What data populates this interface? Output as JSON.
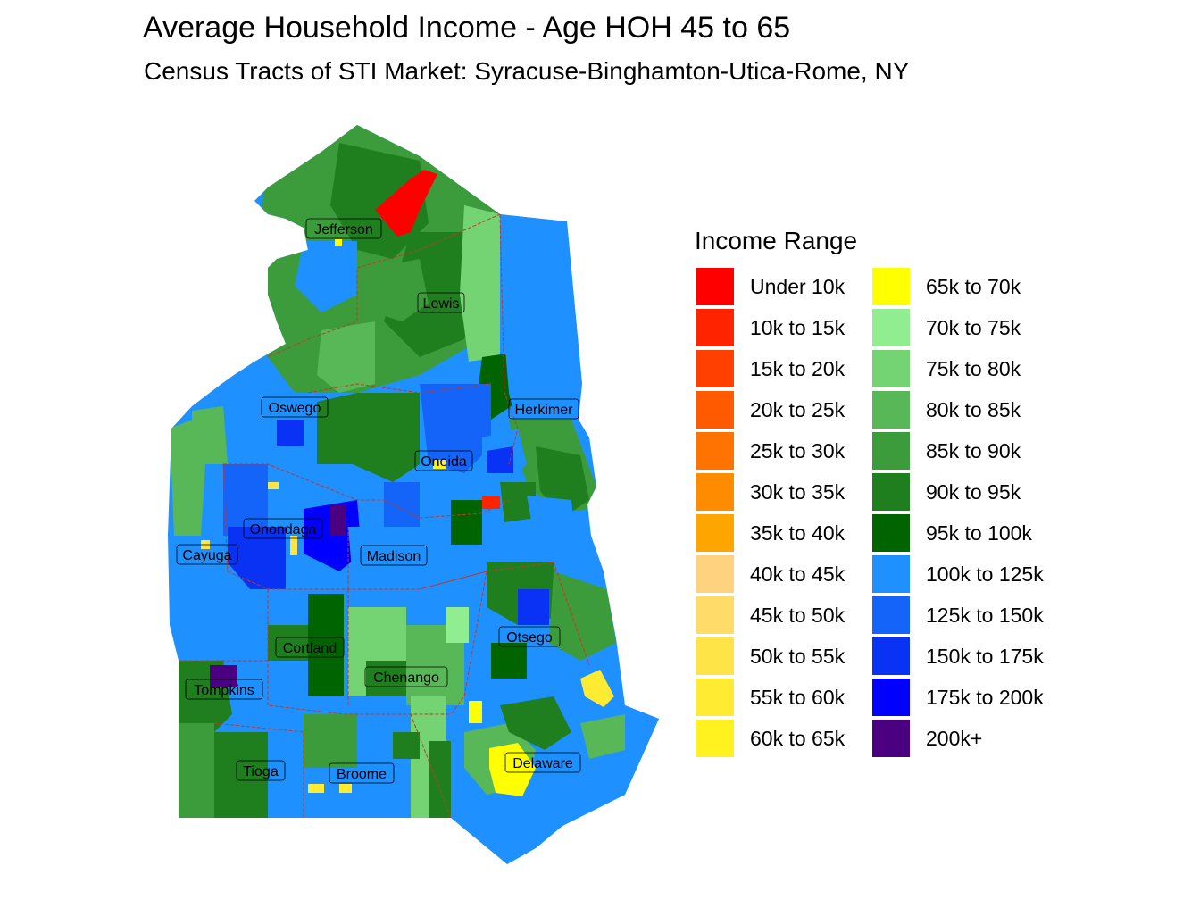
{
  "title": "Average Household Income - Age HOH 45 to 65",
  "subtitle": "Census Tracts of STI Market: Syracuse-Binghamton-Utica-Rome, NY",
  "legend": {
    "title": "Income Range",
    "items": [
      {
        "label": "Under 10k",
        "color": "#ff0000"
      },
      {
        "label": "10k to 15k",
        "color": "#ff2300"
      },
      {
        "label": "15k to 20k",
        "color": "#ff4000"
      },
      {
        "label": "20k to 25k",
        "color": "#ff5a00"
      },
      {
        "label": "25k to 30k",
        "color": "#ff7300"
      },
      {
        "label": "30k to 35k",
        "color": "#ff8c00"
      },
      {
        "label": "35k to 40k",
        "color": "#ffa500"
      },
      {
        "label": "40k to 45k",
        "color": "#ffd27f"
      },
      {
        "label": "45k to 50k",
        "color": "#ffdc6a"
      },
      {
        "label": "50k to 55k",
        "color": "#ffe448"
      },
      {
        "label": "55k to 60k",
        "color": "#ffeb32"
      },
      {
        "label": "60k to 65k",
        "color": "#fff21f"
      },
      {
        "label": "65k to 70k",
        "color": "#ffff00"
      },
      {
        "label": "70k to 75k",
        "color": "#90ee90"
      },
      {
        "label": "75k to 80k",
        "color": "#74d474"
      },
      {
        "label": "80k to 85k",
        "color": "#58b858"
      },
      {
        "label": "85k to 90k",
        "color": "#3c9c3c"
      },
      {
        "label": "90k to 95k",
        "color": "#1f7f1f"
      },
      {
        "label": "95k to 100k",
        "color": "#006400"
      },
      {
        "label": "100k to 125k",
        "color": "#1e90ff"
      },
      {
        "label": "125k to 150k",
        "color": "#1464fa"
      },
      {
        "label": "150k to 175k",
        "color": "#0a32f5"
      },
      {
        "label": "175k to 200k",
        "color": "#0000ff"
      },
      {
        "label": "200k+",
        "color": "#4b0082"
      }
    ]
  },
  "counties": [
    {
      "name": "Jefferson"
    },
    {
      "name": "Lewis"
    },
    {
      "name": "Oswego"
    },
    {
      "name": "Herkimer"
    },
    {
      "name": "Oneida"
    },
    {
      "name": "Onondaga"
    },
    {
      "name": "Cayuga"
    },
    {
      "name": "Madison"
    },
    {
      "name": "Otsego"
    },
    {
      "name": "Cortland"
    },
    {
      "name": "Chenango"
    },
    {
      "name": "Tompkins"
    },
    {
      "name": "Tioga"
    },
    {
      "name": "Broome"
    },
    {
      "name": "Delaware"
    }
  ]
}
